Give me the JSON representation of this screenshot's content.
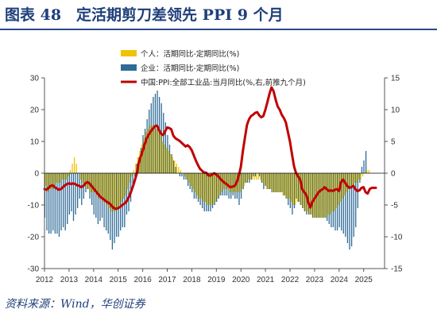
{
  "title": "图表 48　定活期剪刀差领先 PPI 9 个月",
  "source": "资料来源：Wind，华创证券",
  "colors": {
    "individual": "#f2c200",
    "corporate": "#2e6b97",
    "ppi": "#c00000",
    "title": "#1f3f7a"
  },
  "chart_data": {
    "type": "bar+line",
    "legend": [
      "个人：活期同比-定期同比(%)",
      "企业：活期同比-定期同比(%)",
      "中国:PPI:全部工业品:当月同比(%,右,前推九个月)"
    ],
    "legend_position": "top-center",
    "x_ticks": [
      "2012",
      "2013",
      "2014",
      "2015",
      "2016",
      "2017",
      "2018",
      "2019",
      "2020",
      "2021",
      "2022",
      "2023",
      "2024",
      "2025"
    ],
    "y_left": {
      "range": [
        -30,
        30
      ],
      "ticks": [
        "30",
        "20",
        "10",
        "0",
        "-10",
        "-20",
        "-30"
      ]
    },
    "y_right": {
      "range": [
        -15,
        15
      ],
      "ticks": [
        "15",
        "10",
        "5",
        "0",
        "-5",
        "-10",
        "-15"
      ]
    },
    "grid": false,
    "x_start": 2012.0,
    "x_step": 0.0833,
    "series": [
      {
        "name": "企业：活期同比-定期同比(%)",
        "type": "bar",
        "axis": "left",
        "values": [
          -14,
          -18,
          -19,
          -19,
          -18,
          -19,
          -19,
          -20,
          -18,
          -17,
          -18,
          -16,
          -13,
          -12,
          -15,
          -13,
          -11,
          -8,
          -10,
          -8,
          -6,
          -5,
          -8,
          -10,
          -13,
          -14,
          -16,
          -15,
          -14,
          -17,
          -18,
          -19,
          -21,
          -24,
          -22,
          -20,
          -20,
          -18,
          -17,
          -17,
          -13,
          -12,
          -9,
          -5,
          -1,
          3,
          5,
          8,
          12,
          14,
          17,
          20,
          22,
          24,
          25,
          26,
          24,
          22,
          19,
          16,
          12,
          9,
          6,
          4,
          2,
          0,
          -1,
          -1,
          -2,
          -2,
          -4,
          -5,
          -6,
          -8,
          -8,
          -9,
          -10,
          -11,
          -12,
          -12,
          -12,
          -12,
          -11,
          -10,
          -9,
          -8,
          -7,
          -7,
          -7,
          -7,
          -8,
          -8,
          -7,
          -8,
          -8,
          -10,
          -8,
          -5,
          -3,
          -3,
          -3,
          -2,
          -1,
          -1,
          0,
          -1,
          -3,
          -5,
          -4,
          -5,
          -5,
          -6,
          -6,
          -6,
          -6,
          -6,
          -6,
          -7,
          -8,
          -10,
          -11,
          -13,
          -11,
          -8,
          -9,
          -10,
          -11,
          -12,
          -13,
          -13,
          -13,
          -14,
          -14,
          -14,
          -14,
          -14,
          -14,
          -14,
          -15,
          -16,
          -17,
          -17,
          -18,
          -18,
          -17,
          -18,
          -19,
          -20,
          -22,
          -24,
          -23,
          -20,
          -17,
          -11,
          -3,
          2,
          4,
          7
        ]
      },
      {
        "name": "个人：活期同比-定期同比(%)",
        "type": "bar",
        "axis": "left",
        "values": [
          -4,
          -6,
          -5,
          -5,
          -4,
          -3,
          -3,
          -3,
          -2,
          -2,
          -2,
          -1,
          1,
          3,
          5,
          3,
          0,
          -2,
          -3,
          -4,
          -5,
          -5,
          -6,
          -6,
          -6,
          -7,
          -8,
          -8,
          -9,
          -9,
          -10,
          -11,
          -12,
          -12,
          -12,
          -11,
          -10,
          -9,
          -8,
          -7,
          -5,
          -3,
          -1,
          1,
          3,
          5,
          7,
          9,
          11,
          13,
          14,
          15,
          15,
          15,
          14,
          13,
          12,
          10,
          9,
          8,
          7,
          6,
          5,
          4,
          3,
          2,
          1,
          0,
          -1,
          -2,
          -3,
          -4,
          -5,
          -6,
          -7,
          -8,
          -8,
          -9,
          -9,
          -10,
          -10,
          -10,
          -10,
          -9,
          -8,
          -7,
          -6,
          -5,
          -5,
          -5,
          -6,
          -6,
          -6,
          -6,
          -6,
          -6,
          -5,
          -4,
          -3,
          -2,
          -2,
          -2,
          -2,
          -2,
          -2,
          -2,
          -3,
          -4,
          -5,
          -5,
          -5,
          -6,
          -6,
          -6,
          -6,
          -6,
          -7,
          -7,
          -8,
          -8,
          -9,
          -10,
          -10,
          -9,
          -9,
          -10,
          -11,
          -12,
          -12,
          -13,
          -13,
          -14,
          -14,
          -14,
          -14,
          -14,
          -14,
          -14,
          -13,
          -13,
          -12,
          -12,
          -11,
          -10,
          -9,
          -8,
          -7,
          -6,
          -5,
          -4,
          -4,
          -3,
          -3,
          -2,
          -2,
          -1,
          0,
          1,
          1
        ]
      },
      {
        "name": "中国:PPI:全部工业品:当月同比(%,右,前推九个月)",
        "type": "line",
        "axis": "right",
        "values": [
          -2.5,
          -2.6,
          -2.3,
          -2.0,
          -1.9,
          -2.2,
          -2.4,
          -2.6,
          -2.5,
          -2.2,
          -1.9,
          -1.7,
          -1.6,
          -1.7,
          -1.6,
          -1.7,
          -1.9,
          -2.0,
          -2.2,
          -2.0,
          -1.6,
          -1.4,
          -1.6,
          -2.0,
          -2.4,
          -2.8,
          -3.2,
          -3.6,
          -3.9,
          -4.1,
          -4.4,
          -4.6,
          -4.8,
          -5.2,
          -5.5,
          -5.6,
          -5.5,
          -5.3,
          -5.0,
          -4.8,
          -4.5,
          -3.9,
          -3.2,
          -2.3,
          -1.3,
          -0.2,
          1.5,
          2.6,
          3.5,
          4.6,
          5.5,
          6.1,
          6.6,
          7.0,
          7.4,
          7.5,
          6.8,
          6.2,
          6.0,
          6.6,
          7.2,
          7.1,
          6.9,
          5.9,
          5.5,
          5.3,
          5.1,
          4.8,
          4.5,
          4.2,
          4.4,
          4.1,
          3.6,
          2.8,
          2.0,
          1.3,
          0.7,
          0.4,
          0.1,
          0.1,
          -0.3,
          -0.4,
          -0.2,
          0.0,
          -0.2,
          -0.5,
          -0.9,
          -1.2,
          -1.5,
          -1.7,
          -2.0,
          -2.2,
          -2.1,
          -2.0,
          -1.4,
          -0.4,
          1.0,
          3.5,
          5.6,
          7.6,
          8.5,
          9.0,
          9.2,
          9.5,
          9.6,
          9.1,
          8.8,
          9.0,
          10.0,
          11.2,
          12.5,
          13.5,
          12.9,
          11.6,
          10.5,
          10.0,
          9.2,
          8.7,
          8.0,
          6.5,
          5.0,
          3.0,
          1.1,
          0.0,
          -0.5,
          -1.0,
          -2.5,
          -3.0,
          -3.4,
          -4.6,
          -5.4,
          -4.5,
          -4.0,
          -3.5,
          -3.0,
          -2.7,
          -2.5,
          -2.2,
          -2.5,
          -2.8,
          -2.7,
          -2.8,
          -2.6,
          -2.5,
          -2.8,
          -1.4,
          -1.0,
          -1.5,
          -2.0,
          -2.3,
          -2.2,
          -2.0,
          -2.5,
          -2.8,
          -2.7,
          -2.3,
          -2.2,
          -3.0,
          -3.2,
          -2.5,
          -2.3,
          -2.3,
          -2.3
        ]
      }
    ]
  }
}
